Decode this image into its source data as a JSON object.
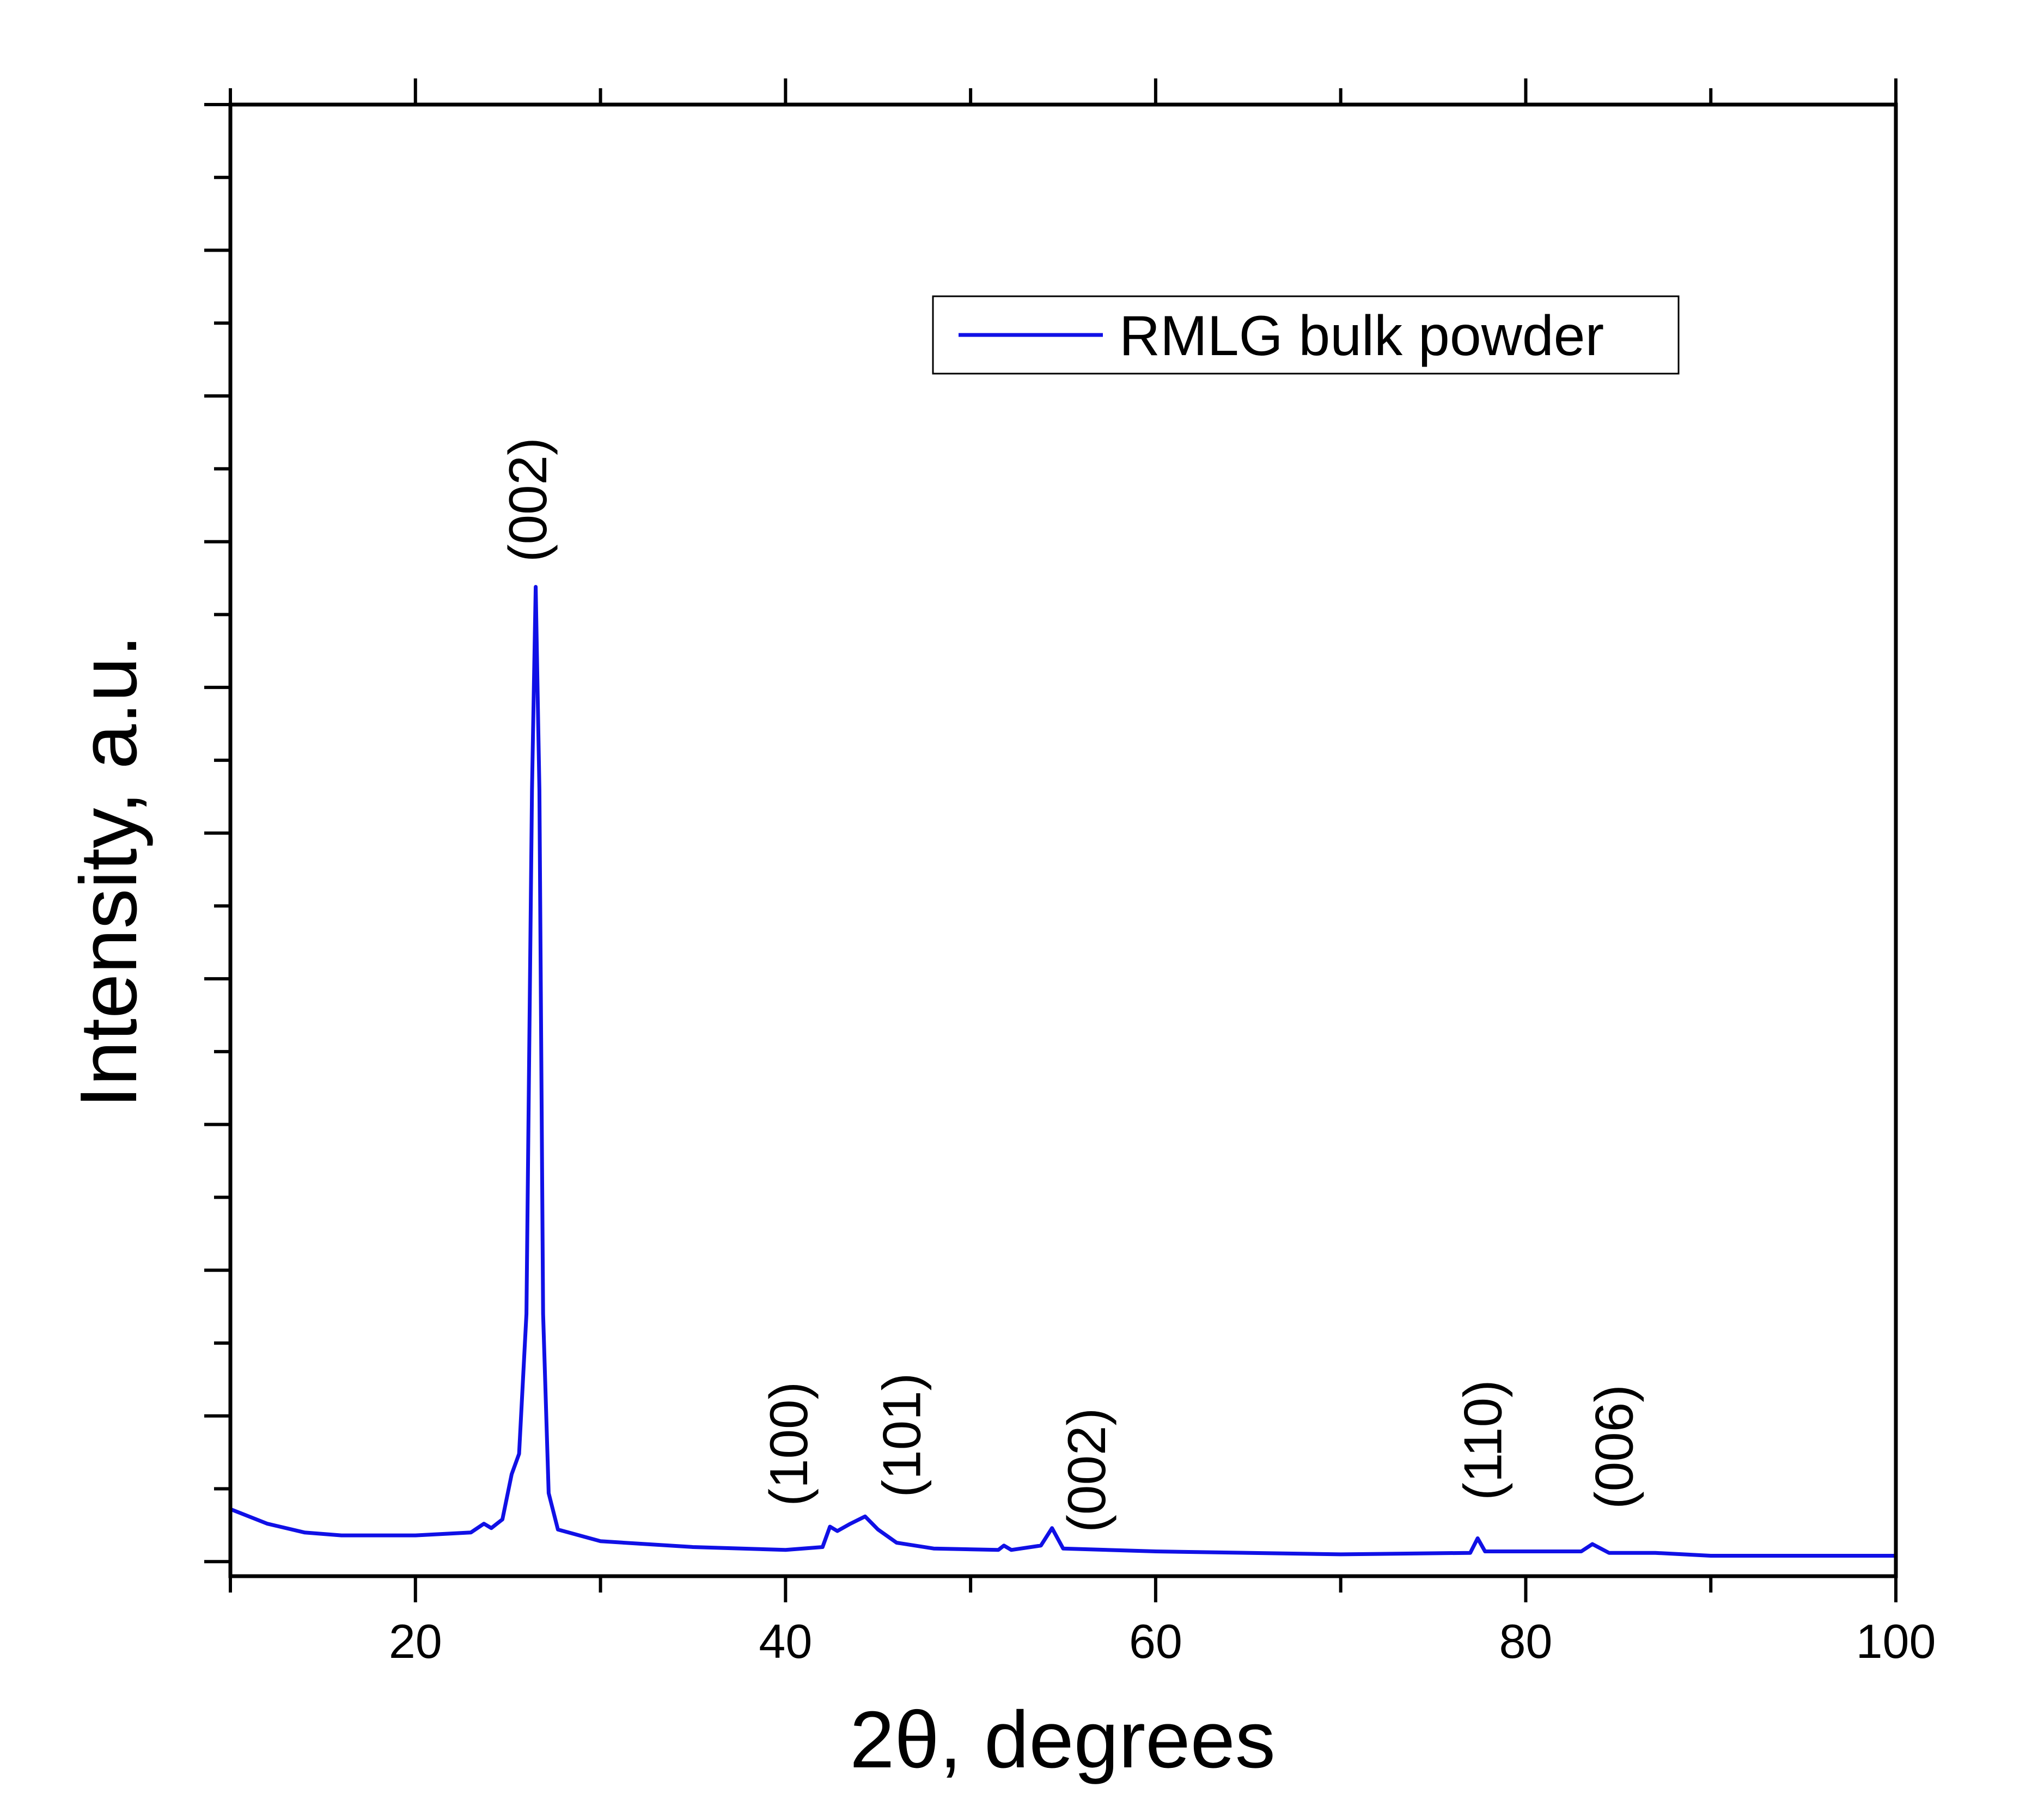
{
  "chart_data": {
    "type": "line",
    "title": "",
    "xlabel": "2θ, degrees",
    "ylabel": "Intensity, a.u.",
    "xlim": [
      10,
      100
    ],
    "ylim": [
      -0.1,
      10.0
    ],
    "x_ticks": [
      20,
      40,
      60,
      80,
      100
    ],
    "x_tick_labels": [
      "20",
      "40",
      "60",
      "80",
      "100"
    ],
    "y_tick_labels_shown": false,
    "grid": false,
    "legend": {
      "position": "top-right",
      "entries": [
        "RMLG bulk powder"
      ]
    },
    "series": [
      {
        "name": "RMLG bulk powder",
        "color": "#1010e6",
        "x": [
          10,
          12,
          14,
          16,
          20,
          23,
          23.7,
          24.1,
          24.7,
          25.2,
          25.6,
          26.0,
          26.3,
          26.5,
          26.7,
          26.9,
          27.2,
          27.7,
          30,
          35,
          40,
          42,
          42.4,
          42.8,
          43.5,
          44.3,
          45,
          46,
          48,
          51.5,
          51.8,
          52.2,
          53.8,
          54.4,
          55,
          60,
          70,
          77,
          77.4,
          77.8,
          83,
          83.6,
          84.5,
          87,
          90,
          100
        ],
        "y": [
          0.36,
          0.26,
          0.2,
          0.18,
          0.18,
          0.2,
          0.26,
          0.23,
          0.29,
          0.6,
          0.74,
          1.7,
          5.3,
          6.69,
          5.3,
          1.7,
          0.47,
          0.22,
          0.14,
          0.1,
          0.08,
          0.1,
          0.24,
          0.21,
          0.26,
          0.31,
          0.22,
          0.13,
          0.09,
          0.08,
          0.11,
          0.08,
          0.11,
          0.23,
          0.09,
          0.07,
          0.05,
          0.06,
          0.16,
          0.07,
          0.07,
          0.12,
          0.06,
          0.06,
          0.04,
          0.04
        ]
      }
    ],
    "annotations": [
      {
        "text": "(002)",
        "x": 26.1,
        "y": 6.86
      },
      {
        "text": "(100)",
        "x": 40.2,
        "y": 0.38
      },
      {
        "text": "(101)",
        "x": 46.3,
        "y": 0.44
      },
      {
        "text": "(002)",
        "x": 56.3,
        "y": 0.2
      },
      {
        "text": "(110)",
        "x": 77.7,
        "y": 0.42
      },
      {
        "text": "(006)",
        "x": 84.8,
        "y": 0.36
      }
    ]
  }
}
